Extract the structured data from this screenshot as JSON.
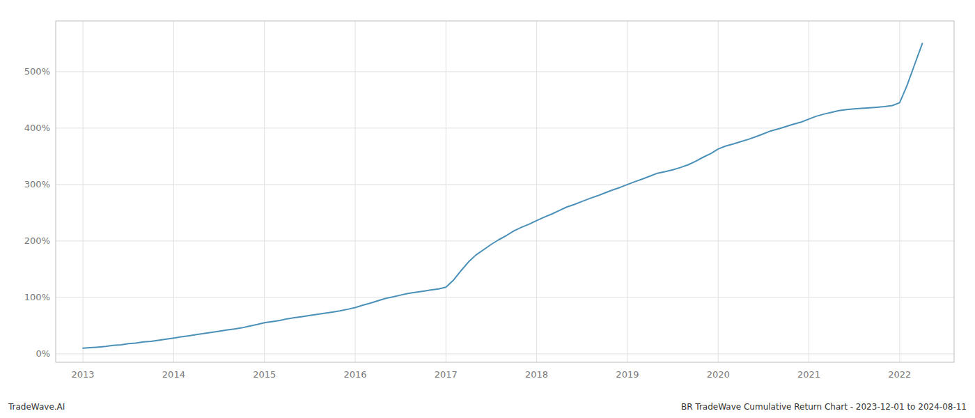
{
  "chart_data": {
    "type": "line",
    "title": "BR TradeWave Cumulative Return Chart - 2023-12-01 to 2024-08-11",
    "annotations": [
      "TradeWave.AI"
    ],
    "color": "#4a90b8",
    "grid": true,
    "xlim": [
      2012.7,
      2022.6
    ],
    "xticks": [
      2013,
      2014,
      2015,
      2016,
      2017,
      2018,
      2019,
      2020,
      2021,
      2022
    ],
    "ylim": [
      -15,
      590
    ],
    "yticks": [
      {
        "value": 0,
        "label": "0%"
      },
      {
        "value": 100,
        "label": "100%"
      },
      {
        "value": 200,
        "label": "200%"
      },
      {
        "value": 300,
        "label": "300%"
      },
      {
        "value": 400,
        "label": "400%"
      },
      {
        "value": 500,
        "label": "500%"
      }
    ],
    "x": [
      2013.0,
      2013.08,
      2013.17,
      2013.25,
      2013.33,
      2013.42,
      2013.5,
      2013.58,
      2013.67,
      2013.75,
      2013.83,
      2013.92,
      2014.0,
      2014.08,
      2014.17,
      2014.25,
      2014.33,
      2014.42,
      2014.5,
      2014.58,
      2014.67,
      2014.75,
      2014.83,
      2014.92,
      2015.0,
      2015.08,
      2015.17,
      2015.25,
      2015.33,
      2015.42,
      2015.5,
      2015.58,
      2015.67,
      2015.75,
      2015.83,
      2015.92,
      2016.0,
      2016.08,
      2016.17,
      2016.25,
      2016.33,
      2016.42,
      2016.5,
      2016.58,
      2016.67,
      2016.75,
      2016.83,
      2016.92,
      2017.0,
      2017.08,
      2017.17,
      2017.25,
      2017.33,
      2017.42,
      2017.5,
      2017.58,
      2017.67,
      2017.75,
      2017.83,
      2017.92,
      2018.0,
      2018.08,
      2018.17,
      2018.25,
      2018.33,
      2018.42,
      2018.5,
      2018.58,
      2018.67,
      2018.75,
      2018.83,
      2018.92,
      2019.0,
      2019.08,
      2019.17,
      2019.25,
      2019.33,
      2019.42,
      2019.5,
      2019.58,
      2019.67,
      2019.75,
      2019.83,
      2019.92,
      2020.0,
      2020.08,
      2020.17,
      2020.25,
      2020.33,
      2020.42,
      2020.5,
      2020.58,
      2020.67,
      2020.75,
      2020.83,
      2020.92,
      2021.0,
      2021.08,
      2021.17,
      2021.25,
      2021.33,
      2021.42,
      2021.5,
      2021.58,
      2021.67,
      2021.75,
      2021.83,
      2021.92,
      2022.0,
      2022.08,
      2022.17,
      2022.25
    ],
    "values": [
      10,
      11,
      12,
      13,
      15,
      16,
      18,
      19,
      21,
      22,
      24,
      26,
      28,
      30,
      32,
      34,
      36,
      38,
      40,
      42,
      44,
      46,
      49,
      52,
      55,
      57,
      59,
      62,
      64,
      66,
      68,
      70,
      72,
      74,
      76,
      79,
      82,
      86,
      90,
      94,
      98,
      101,
      104,
      107,
      109,
      111,
      113,
      115,
      118,
      130,
      148,
      163,
      175,
      185,
      194,
      202,
      210,
      218,
      224,
      230,
      236,
      242,
      248,
      254,
      260,
      265,
      270,
      275,
      280,
      285,
      290,
      295,
      300,
      305,
      310,
      315,
      320,
      323,
      326,
      330,
      335,
      341,
      348,
      355,
      363,
      368,
      372,
      376,
      380,
      385,
      390,
      395,
      399,
      403,
      407,
      411,
      416,
      421,
      425,
      428,
      431,
      433,
      434,
      435,
      436,
      437,
      438,
      440,
      445,
      475,
      515,
      550
    ]
  }
}
